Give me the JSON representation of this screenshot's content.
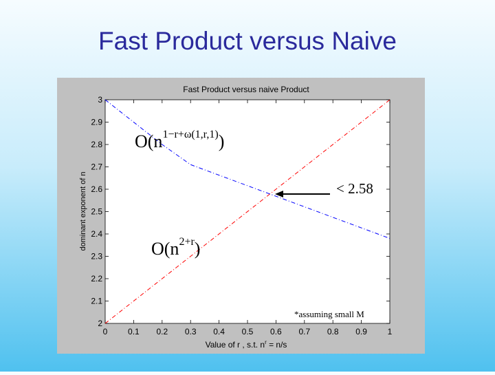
{
  "slide_title": "Fast Product versus Naive",
  "chart_data": {
    "type": "line",
    "title": "Fast Product versus naive Product",
    "x_label": {
      "text": "Value of r , s.t. n",
      "sup": "r",
      "end": " = n/s"
    },
    "y_label": "dominant exponent of n",
    "x": [
      0,
      0.1,
      0.2,
      0.3,
      1
    ],
    "series": [
      {
        "color": "#ff0000",
        "values": [
          2,
          2.1,
          2.2,
          2.3,
          3
        ]
      },
      {
        "color": "#0000ff",
        "values": [
          3,
          2.9,
          2.8,
          2.71,
          2.38
        ]
      }
    ],
    "xlim": [
      0,
      1
    ],
    "ylim": [
      2,
      3
    ],
    "xticks": [
      0,
      0.1,
      0.2,
      0.3,
      0.4,
      0.5,
      0.6,
      0.7,
      0.8,
      0.9,
      1
    ],
    "yticks": [
      2,
      2.1,
      2.2,
      2.3,
      2.4,
      2.5,
      2.6,
      2.7,
      2.8,
      2.9,
      3
    ],
    "grid": false,
    "annotations": [
      {
        "text": "O(n",
        "sup": "1−r+ω(1,r,1)",
        "end": ")"
      },
      {
        "text": "< 2.58"
      },
      {
        "text": "O(n",
        "sup": "2+r",
        "end": ")"
      },
      {
        "text": "*assuming small M"
      }
    ]
  }
}
